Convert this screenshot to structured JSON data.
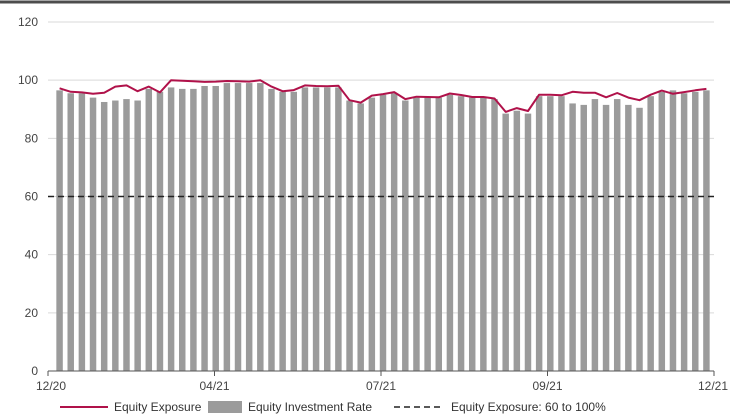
{
  "chart_data": {
    "type": "bar",
    "title": "",
    "xlabel": "",
    "ylabel": "",
    "ylim": [
      0,
      120
    ],
    "y_ticks": [
      0,
      20,
      40,
      60,
      80,
      100,
      120
    ],
    "x_tick_labels": [
      "12/20",
      "04/21",
      "07/21",
      "09/21",
      "12/21"
    ],
    "grid": "horizontal",
    "legend": "bottom",
    "colors": {
      "bars": "#9b9b9b",
      "line": "#b0124a",
      "threshold": "#222222",
      "top_rule": "#4d4d4d",
      "grid": "#d9d9d9"
    },
    "series": [
      {
        "name": "Equity Investment Rate",
        "kind": "bar",
        "values": [
          96.5,
          95.5,
          95.5,
          94,
          92.5,
          93,
          93.5,
          93,
          97,
          96,
          97.5,
          97,
          97,
          98,
          98,
          99,
          99,
          99,
          99,
          97,
          96,
          96,
          97.5,
          97.5,
          97.5,
          97.5,
          93,
          92,
          94,
          95,
          95.5,
          93,
          94,
          94,
          94,
          95,
          94.5,
          94,
          94,
          93.5,
          88.5,
          89.5,
          88.5,
          94.5,
          94.5,
          94.5,
          92,
          91.5,
          93.5,
          91.5,
          93.5,
          91.5,
          90.5,
          94.5,
          96,
          96.5,
          95.5,
          96,
          96.5
        ]
      },
      {
        "name": "Equity Exposure",
        "kind": "line",
        "values": [
          97.2,
          96,
          95.8,
          95.3,
          95.7,
          97.8,
          98.2,
          96.2,
          97.8,
          95.8,
          100,
          99.8,
          99.6,
          99.4,
          99.5,
          99.7,
          99.6,
          99.5,
          100,
          97.8,
          96.2,
          96.6,
          98.2,
          98,
          97.9,
          98.1,
          93.1,
          92.3,
          94.7,
          95.2,
          95.9,
          93.5,
          94.3,
          94.2,
          94.1,
          95.4,
          94.9,
          94.2,
          94.2,
          93.7,
          89.1,
          90.4,
          89.4,
          95,
          95,
          94.8,
          96,
          95.7,
          95.7,
          94.1,
          95.6,
          94,
          93.1,
          95,
          96.4,
          95.3,
          95.9,
          96.5,
          97
        ]
      },
      {
        "name": "Equity Exposure: 60 to 100%",
        "kind": "threshold",
        "values": [
          60
        ]
      }
    ]
  }
}
